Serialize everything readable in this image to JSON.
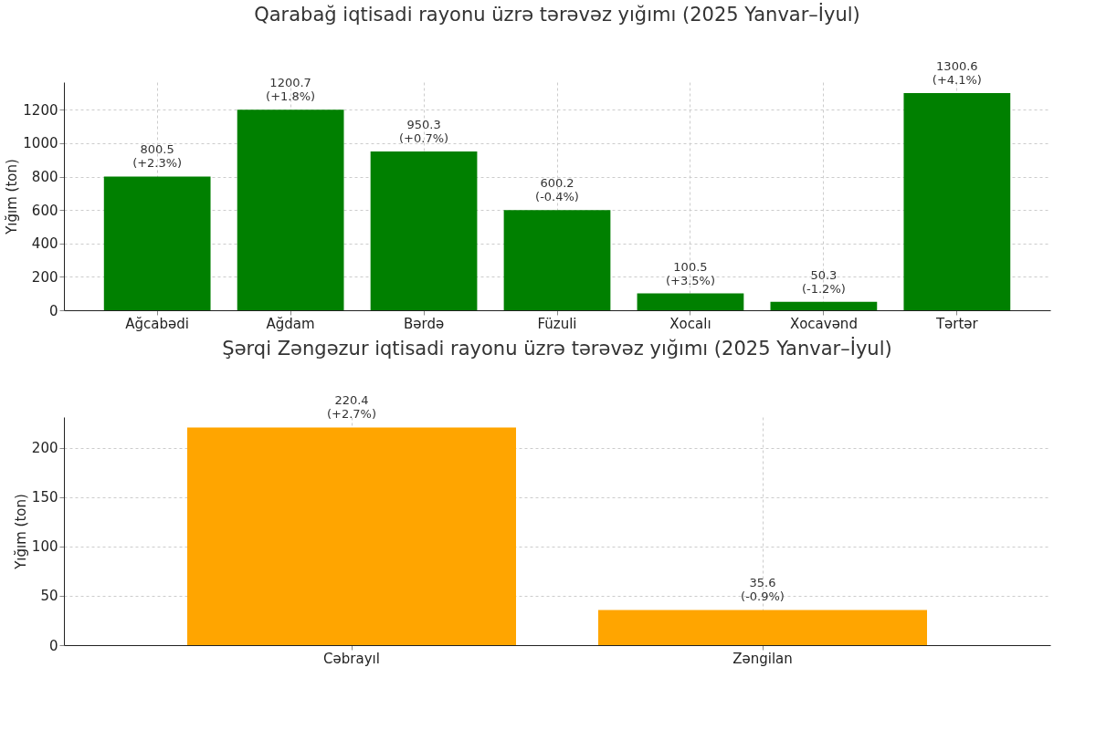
{
  "chart_data": [
    {
      "type": "bar",
      "title": "Qarabağ iqtisadi rayonu üzrə tərəvəz yığımı (2025 Yanvar–İyul)",
      "ylabel": "Yığım (ton)",
      "categories": [
        "Ağcabədi",
        "Ağdam",
        "Bərdə",
        "Füzuli",
        "Xocalı",
        "Xocavənd",
        "Tərtər"
      ],
      "values": [
        800.5,
        1200.7,
        950.3,
        600.2,
        100.5,
        50.3,
        1300.6
      ],
      "color": "#008000",
      "value_labels": [
        "800.5\n(+2.3%)",
        "1200.7\n(+1.8%)",
        "950.3\n(+0.7%)",
        "600.2\n(-0.4%)",
        "100.5\n(+3.5%)",
        "50.3\n(-1.2%)",
        "1300.6\n(+4.1%)"
      ],
      "ylim": [
        0,
        1366
      ],
      "yticks": [
        0,
        200,
        400,
        600,
        800,
        1000,
        1200
      ],
      "grid": true
    },
    {
      "type": "bar",
      "title": "Şərqi Zəngəzur iqtisadi rayonu üzrə tərəvəz yığımı (2025 Yanvar–İyul)",
      "ylabel": "Yığım (ton)",
      "categories": [
        "Cəbrayıl",
        "Zəngilan"
      ],
      "values": [
        220.4,
        35.6
      ],
      "color": "#ffa500",
      "value_labels": [
        "220.4\n(+2.7%)",
        "35.6\n(-0.9%)"
      ],
      "ylim": [
        0,
        231
      ],
      "yticks": [
        0,
        50,
        100,
        150,
        200
      ],
      "grid": true
    }
  ]
}
